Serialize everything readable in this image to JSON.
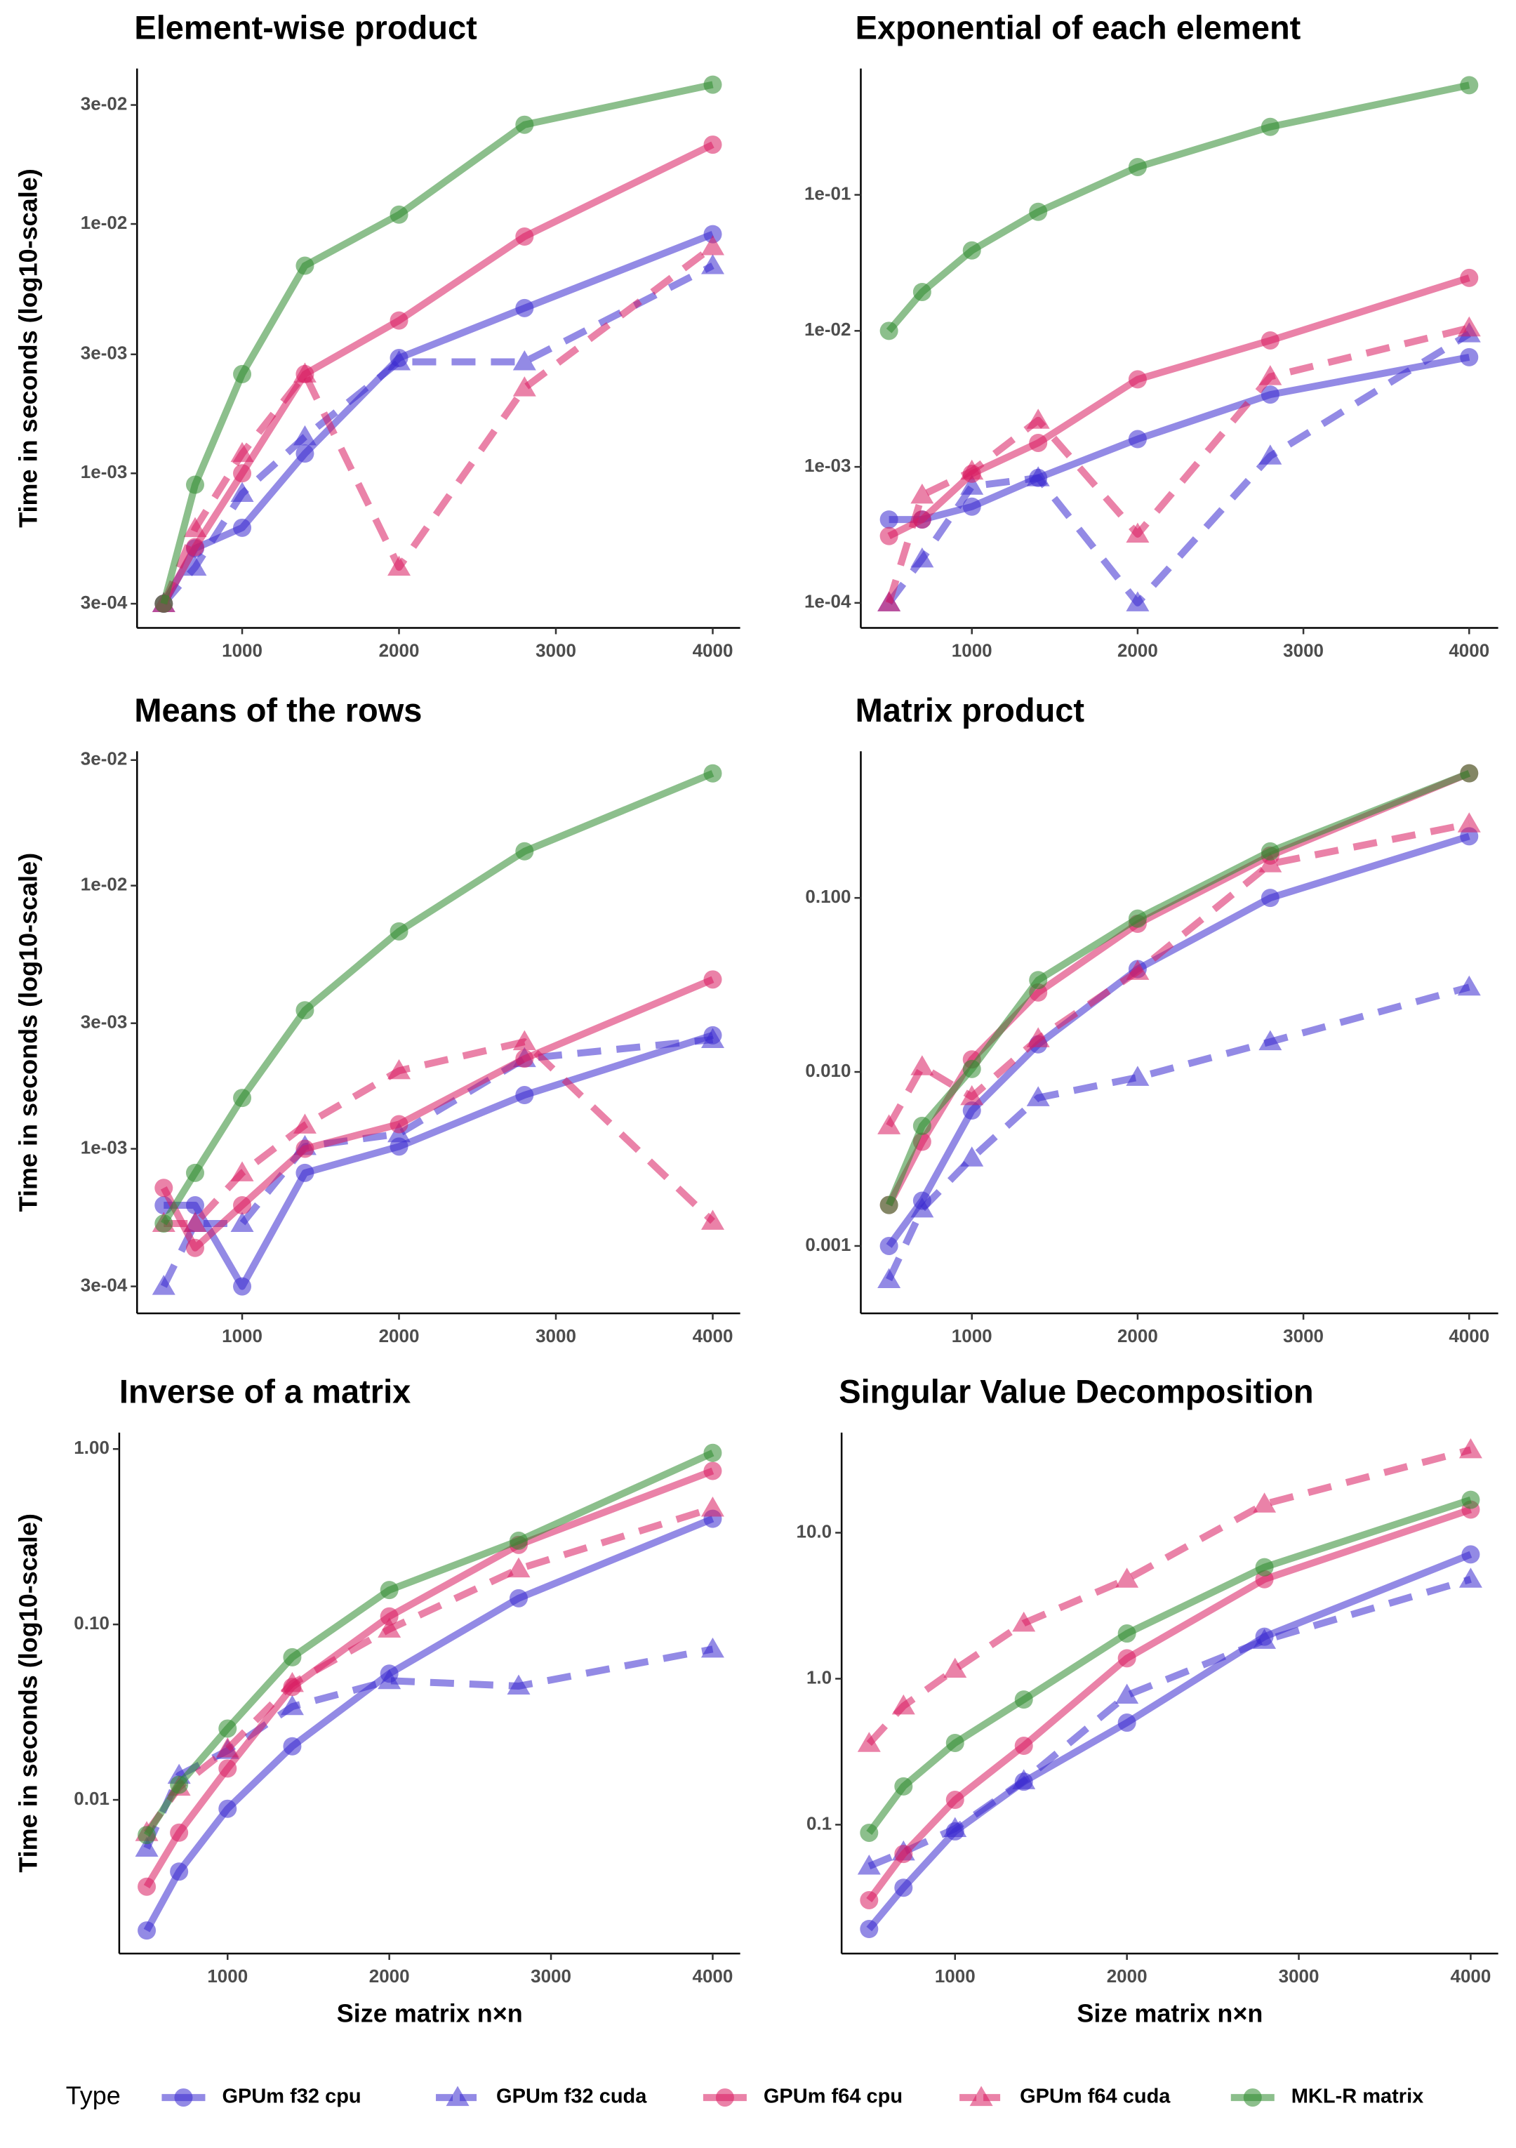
{
  "chart_data": [
    {
      "type": "line",
      "title": "Element-wise product",
      "y_label": "Time in seconds (log10-scale)",
      "log_y": true,
      "legend_title": "Type",
      "legend": "bottom",
      "x": [
        500,
        700,
        1000,
        1400,
        2000,
        2800,
        4000
      ],
      "xlim": [
        330,
        4175
      ],
      "xticks": [
        1000,
        2000,
        3000,
        4000
      ],
      "ylim": [
        0.00024,
        0.042
      ],
      "yticks": [
        {
          "value": 0.0003,
          "label": "3e-04"
        },
        {
          "value": 0.001,
          "label": "1e-03"
        },
        {
          "value": 0.003,
          "label": "3e-03"
        },
        {
          "value": 0.01,
          "label": "1e-02"
        },
        {
          "value": 0.03,
          "label": "3e-02"
        }
      ],
      "series": [
        {
          "name": "GPUm f32 cpu",
          "color": "#3a2ad0",
          "linestyle": "solid",
          "marker": "circle",
          "values": [
            0.0003,
            0.0005,
            0.000605,
            0.0012,
            0.0029,
            0.0046,
            0.0091
          ]
        },
        {
          "name": "GPUm f32 cuda",
          "color": "#3a2ad0",
          "linestyle": "dashed",
          "marker": "triangle",
          "values": [
            0.0003,
            0.00042,
            0.00083,
            0.0014,
            0.0028,
            0.0028,
            0.0068
          ]
        },
        {
          "name": "GPUm f64 cpu",
          "color": "#d81b60",
          "linestyle": "solid",
          "marker": "circle",
          "values": [
            0.0003,
            0.000506,
            0.001,
            0.0025,
            0.0041,
            0.0089,
            0.0208
          ]
        },
        {
          "name": "GPUm f64 cuda",
          "color": "#d81b60",
          "linestyle": "dashed",
          "marker": "triangle",
          "values": [
            0.0003,
            0.0006,
            0.0012,
            0.0025,
            0.00042,
            0.0022,
            0.0081
          ]
        },
        {
          "name": "MKL-R matrix",
          "color": "#2e8b2e",
          "linestyle": "solid",
          "marker": "circle",
          "values": [
            0.0003,
            0.0009,
            0.0025,
            0.0068,
            0.0109,
            0.025,
            0.0362
          ]
        }
      ]
    },
    {
      "type": "line",
      "title": "Exponential of each element",
      "log_y": true,
      "x": [
        500,
        700,
        1000,
        1400,
        2000,
        2800,
        4000
      ],
      "xlim": [
        330,
        4175
      ],
      "xticks": [
        1000,
        2000,
        3000,
        4000
      ],
      "ylim": [
        6.55e-05,
        0.848
      ],
      "yticks": [
        {
          "value": 0.0001,
          "label": "1e-04"
        },
        {
          "value": 0.001,
          "label": "1e-03"
        },
        {
          "value": 0.01,
          "label": "1e-02"
        },
        {
          "value": 0.1,
          "label": "1e-01"
        }
      ],
      "series": [
        {
          "name": "GPUm f32 cpu",
          "color": "#3a2ad0",
          "linestyle": "solid",
          "marker": "circle",
          "values": [
            0.00041,
            0.00041,
            0.00051,
            0.00083,
            0.0016,
            0.0034,
            0.0064
          ]
        },
        {
          "name": "GPUm f32 cuda",
          "color": "#3a2ad0",
          "linestyle": "dashed",
          "marker": "triangle",
          "values": [
            0.0001,
            0.00021,
            0.00072,
            0.00083,
            0.0001,
            0.0012,
            0.0095
          ]
        },
        {
          "name": "GPUm f64 cpu",
          "color": "#d81b60",
          "linestyle": "solid",
          "marker": "circle",
          "values": [
            0.00031,
            0.00041,
            0.00089,
            0.0015,
            0.0044,
            0.0085,
            0.0245
          ]
        },
        {
          "name": "GPUm f64 cuda",
          "color": "#d81b60",
          "linestyle": "dashed",
          "marker": "triangle",
          "values": [
            0.0001,
            0.00062,
            0.00093,
            0.0022,
            0.00032,
            0.0046,
            0.0105
          ]
        },
        {
          "name": "MKL-R matrix",
          "color": "#2e8b2e",
          "linestyle": "solid",
          "marker": "circle",
          "values": [
            0.01,
            0.0193,
            0.039,
            0.075,
            0.16,
            0.316,
            0.64
          ]
        }
      ]
    },
    {
      "type": "line",
      "title": "Means of the rows",
      "y_label": "Time in seconds (log10-scale)",
      "log_y": true,
      "x": [
        500,
        700,
        1000,
        1400,
        2000,
        2800,
        4000
      ],
      "xlim": [
        330,
        4175
      ],
      "xticks": [
        1000,
        2000,
        3000,
        4000
      ],
      "ylim": [
        0.000237,
        0.0324
      ],
      "yticks": [
        {
          "value": 0.0003,
          "label": "3e-04"
        },
        {
          "value": 0.001,
          "label": "1e-03"
        },
        {
          "value": 0.003,
          "label": "3e-03"
        },
        {
          "value": 0.01,
          "label": "1e-02"
        },
        {
          "value": 0.03,
          "label": "3e-02"
        }
      ],
      "series": [
        {
          "name": "GPUm f32 cpu",
          "color": "#3a2ad0",
          "linestyle": "solid",
          "marker": "circle",
          "values": [
            0.00061,
            0.00061,
            0.0003,
            0.00081,
            0.00102,
            0.0016,
            0.0027
          ]
        },
        {
          "name": "GPUm f32 cuda",
          "color": "#3a2ad0",
          "linestyle": "dashed",
          "marker": "triangle",
          "values": [
            0.0003,
            0.00052,
            0.00052,
            0.00102,
            0.00114,
            0.0022,
            0.0026
          ]
        },
        {
          "name": "GPUm f64 cpu",
          "color": "#d81b60",
          "linestyle": "solid",
          "marker": "circle",
          "values": [
            0.00071,
            0.00042,
            0.00061,
            0.001,
            0.00124,
            0.0022,
            0.0044
          ]
        },
        {
          "name": "GPUm f64 cuda",
          "color": "#d81b60",
          "linestyle": "dashed",
          "marker": "triangle",
          "values": [
            0.00052,
            0.00052,
            0.00081,
            0.00123,
            0.00198,
            0.00255,
            0.00053
          ]
        },
        {
          "name": "MKL-R matrix",
          "color": "#2e8b2e",
          "linestyle": "solid",
          "marker": "circle",
          "values": [
            0.00052,
            0.00081,
            0.00156,
            0.00336,
            0.0067,
            0.0135,
            0.0267
          ]
        }
      ]
    },
    {
      "type": "line",
      "title": "Matrix product",
      "log_y": true,
      "x": [
        500,
        700,
        1000,
        1400,
        2000,
        2800,
        4000
      ],
      "xlim": [
        330,
        4175
      ],
      "xticks": [
        1000,
        2000,
        3000,
        4000
      ],
      "ylim": [
        0.00041,
        0.696
      ],
      "yticks": [
        0.001,
        {
          "value": 0.01,
          "label": "0.010"
        },
        {
          "value": 0.1,
          "label": "0.100"
        }
      ],
      "series": [
        {
          "name": "GPUm f32 cpu",
          "color": "#3a2ad0",
          "linestyle": "solid",
          "marker": "circle",
          "values": [
            0.001,
            0.00182,
            0.006,
            0.0144,
            0.039,
            0.1,
            0.226
          ]
        },
        {
          "name": "GPUm f32 cuda",
          "color": "#3a2ad0",
          "linestyle": "dashed",
          "marker": "triangle",
          "values": [
            0.00064,
            0.00163,
            0.0032,
            0.0071,
            0.0093,
            0.0149,
            0.0307
          ]
        },
        {
          "name": "GPUm f64 cpu",
          "color": "#d81b60",
          "linestyle": "solid",
          "marker": "circle",
          "values": [
            0.00172,
            0.00397,
            0.0118,
            0.0286,
            0.071,
            0.175,
            0.52
          ]
        },
        {
          "name": "GPUm f64 cuda",
          "color": "#d81b60",
          "linestyle": "dashed",
          "marker": "triangle",
          "values": [
            0.0049,
            0.0107,
            0.0072,
            0.0155,
            0.0378,
            0.157,
            0.266
          ]
        },
        {
          "name": "MKL-R matrix",
          "color": "#2e8b2e",
          "linestyle": "solid",
          "marker": "circle",
          "values": [
            0.00172,
            0.0049,
            0.0104,
            0.0337,
            0.076,
            0.185,
            0.52
          ]
        }
      ]
    },
    {
      "type": "line",
      "title": "Inverse of a matrix",
      "y_label": "Time in seconds (log10-scale)",
      "x_label": "Size matrix n×n",
      "log_y": true,
      "x": [
        500,
        700,
        1000,
        1400,
        2000,
        2800,
        4000
      ],
      "xlim": [
        330,
        4170
      ],
      "xticks": [
        1000,
        2000,
        3000,
        4000
      ],
      "ylim": [
        0.00133,
        1.24
      ],
      "yticks": [
        0.01,
        {
          "value": 0.1,
          "label": "0.10"
        },
        {
          "value": 1,
          "label": "1.00"
        }
      ],
      "series": [
        {
          "name": "GPUm f32 cpu",
          "color": "#3a2ad0",
          "linestyle": "solid",
          "marker": "circle",
          "values": [
            0.0018,
            0.0039,
            0.0089,
            0.0202,
            0.0524,
            0.141,
            0.4
          ]
        },
        {
          "name": "GPUm f32 cuda",
          "color": "#3a2ad0",
          "linestyle": "dashed",
          "marker": "triangle",
          "values": [
            0.0053,
            0.0138,
            0.0191,
            0.034,
            0.0478,
            0.0445,
            0.0723
          ]
        },
        {
          "name": "GPUm f64 cpu",
          "color": "#d81b60",
          "linestyle": "solid",
          "marker": "circle",
          "values": [
            0.0032,
            0.0065,
            0.0151,
            0.044,
            0.111,
            0.284,
            0.75
          ]
        },
        {
          "name": "GPUm f64 cuda",
          "color": "#d81b60",
          "linestyle": "dashed",
          "marker": "triangle",
          "values": [
            0.0065,
            0.0118,
            0.0195,
            0.046,
            0.094,
            0.207,
            0.46
          ]
        },
        {
          "name": "MKL-R matrix",
          "color": "#2e8b2e",
          "linestyle": "solid",
          "marker": "circle",
          "values": [
            0.0063,
            0.0122,
            0.0255,
            0.065,
            0.157,
            0.3,
            0.95
          ]
        }
      ]
    },
    {
      "type": "line",
      "title": "Singular Value Decomposition",
      "x_label": "Size matrix n×n",
      "log_y": true,
      "x": [
        500,
        700,
        1000,
        1400,
        2000,
        2800,
        4000
      ],
      "xlim": [
        340,
        4160
      ],
      "xticks": [
        1000,
        2000,
        3000,
        4000
      ],
      "ylim": [
        0.0131,
        48.5
      ],
      "yticks": [
        0.1,
        {
          "value": 1,
          "label": "1.0"
        },
        {
          "value": 10,
          "label": "10.0"
        }
      ],
      "series": [
        {
          "name": "GPUm f32 cpu",
          "color": "#3a2ad0",
          "linestyle": "solid",
          "marker": "circle",
          "values": [
            0.0193,
            0.037,
            0.09,
            0.197,
            0.5,
            1.94,
            7.1
          ]
        },
        {
          "name": "GPUm f32 cuda",
          "color": "#3a2ad0",
          "linestyle": "dashed",
          "marker": "triangle",
          "values": [
            0.052,
            0.065,
            0.094,
            0.2,
            0.77,
            1.83,
            4.8
          ]
        },
        {
          "name": "GPUm f64 cpu",
          "color": "#d81b60",
          "linestyle": "solid",
          "marker": "circle",
          "values": [
            0.0304,
            0.063,
            0.148,
            0.347,
            1.38,
            4.8,
            14.4
          ]
        },
        {
          "name": "GPUm f64 cuda",
          "color": "#d81b60",
          "linestyle": "dashed",
          "marker": "triangle",
          "values": [
            0.36,
            0.65,
            1.16,
            2.4,
            4.8,
            15.7,
            37
          ]
        },
        {
          "name": "MKL-R matrix",
          "color": "#2e8b2e",
          "linestyle": "solid",
          "marker": "circle",
          "values": [
            0.088,
            0.183,
            0.363,
            0.72,
            2.04,
            5.8,
            16.8
          ]
        }
      ]
    }
  ]
}
